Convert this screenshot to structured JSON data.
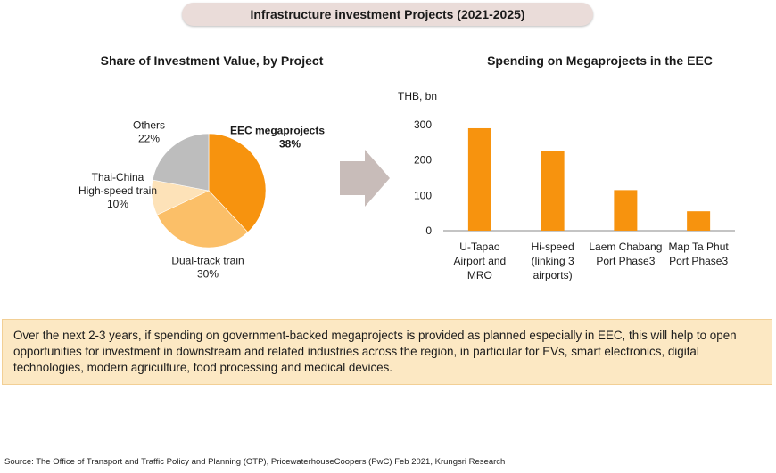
{
  "page_title": "Infrastructure investment Projects (2021-2025)",
  "chart_data": [
    {
      "type": "pie",
      "title": "Share of Investment Value, by Project",
      "unit": "%",
      "slices": [
        {
          "label": "EEC megaprojects",
          "value": 38,
          "value_label": "38%",
          "color": "#f7930e",
          "bold": true
        },
        {
          "label": "Dual-track train",
          "value": 30,
          "value_label": "30%",
          "color": "#fbbf68",
          "bold": false
        },
        {
          "label": "Thai-China High-speed train",
          "value": 10,
          "value_label": "10%",
          "color": "#fde2b8",
          "bold": false
        },
        {
          "label": "Others",
          "value": 22,
          "value_label": "22%",
          "color": "#bdbdbd",
          "bold": false
        }
      ]
    },
    {
      "type": "bar",
      "title": "Spending on Megaprojects in the EEC",
      "ylabel": "THB, bn",
      "ylim": [
        0,
        300
      ],
      "yticks": [
        0,
        100,
        200,
        300
      ],
      "grid": false,
      "bar_color": "#f7930e",
      "categories": [
        [
          "U-Tapao",
          "Airport and",
          "MRO"
        ],
        [
          "Hi-speed",
          "(linking 3",
          "airports)"
        ],
        [
          "Laem Chabang",
          "Port Phase3"
        ],
        [
          "Map Ta Phut",
          "Port Phase3"
        ]
      ],
      "values": [
        290,
        225,
        115,
        55
      ]
    }
  ],
  "arrow_color": "#c8bcb9",
  "callout_text": "Over the next 2-3 years, if spending on government-backed megaprojects is provided as planned especially in EEC, this will help to open opportunities for investment in downstream and related industries across the region, in particular for EVs, smart electronics, digital technologies, modern agriculture, food processing and medical devices.",
  "source_text": "Source: The Office of Transport and Traffic  Policy and Planning (OTP), PricewaterhouseCoopers (PwC) Feb 2021, Krungsri Research"
}
